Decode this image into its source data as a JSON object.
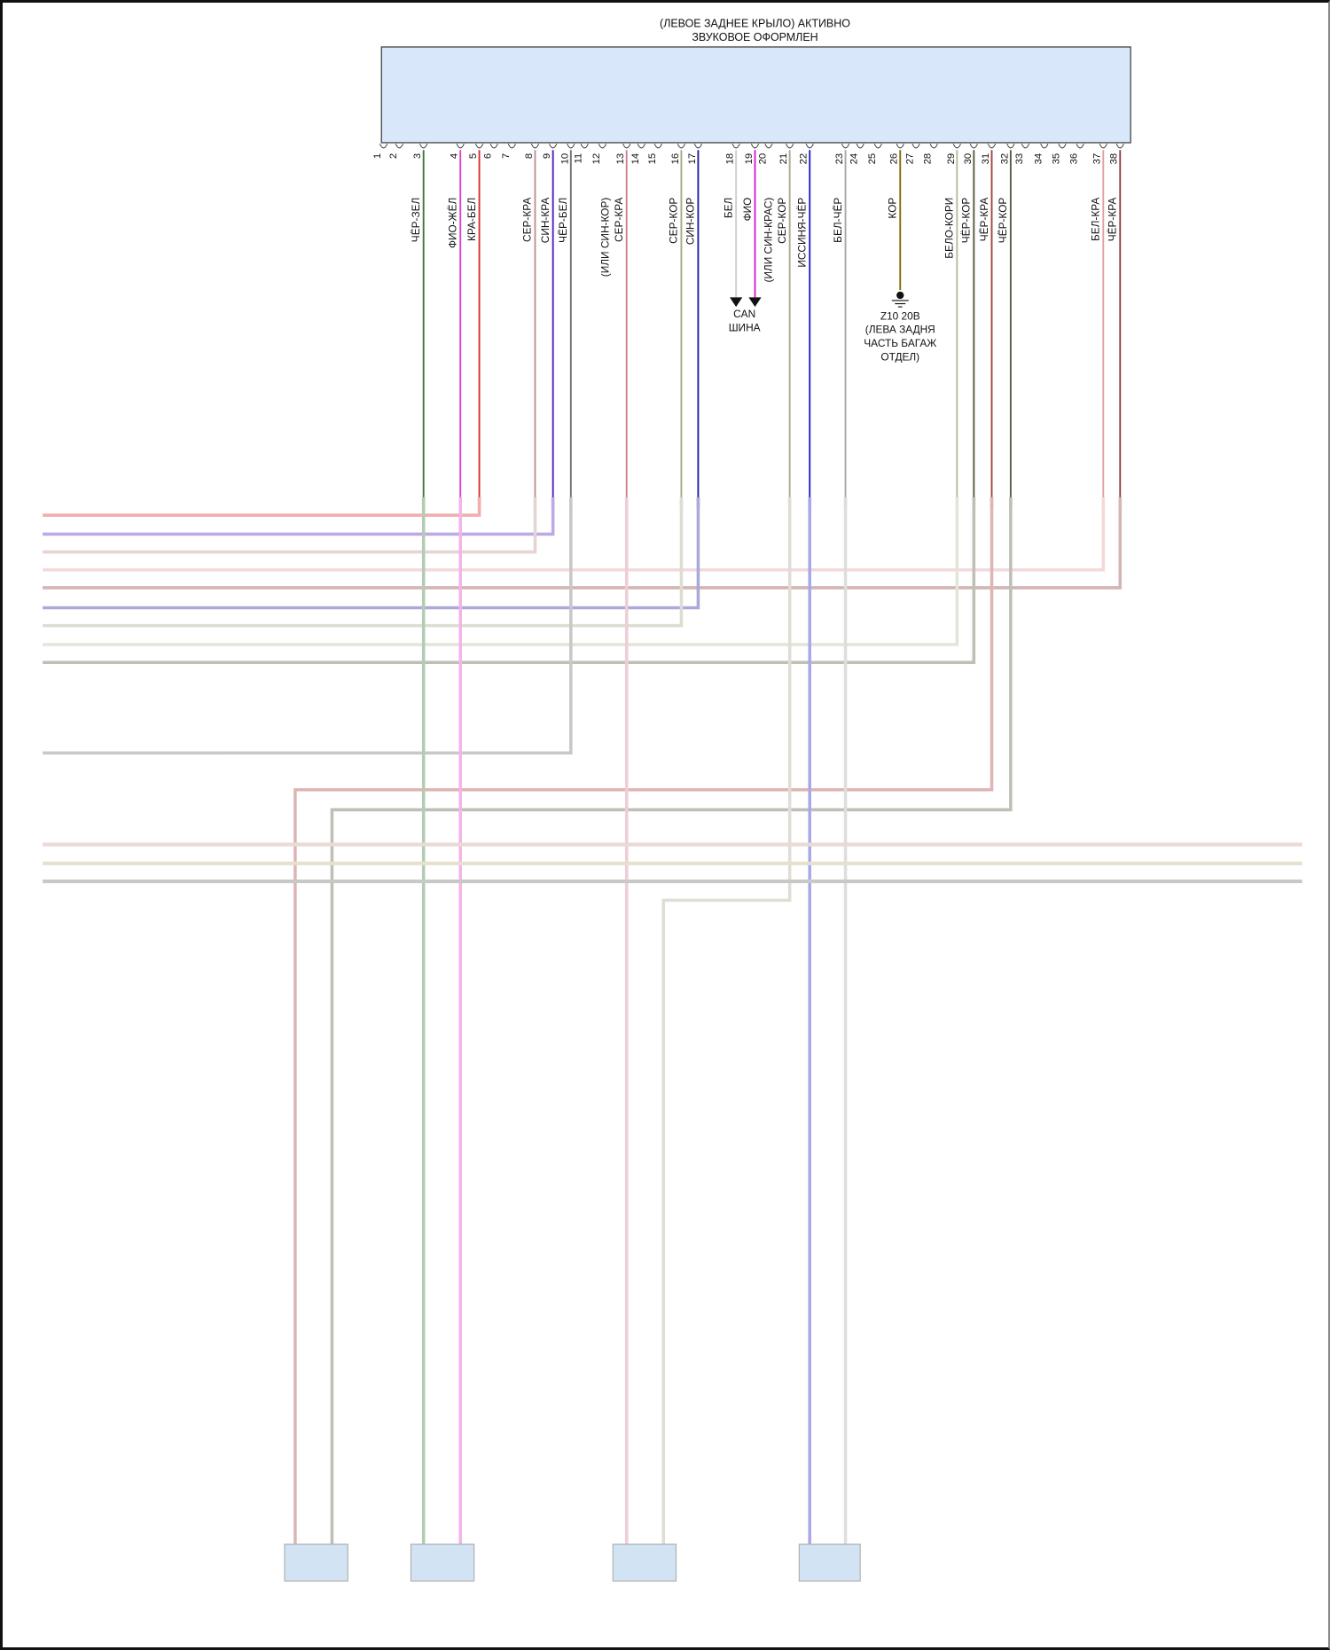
{
  "module": {
    "title_line1": "(ЛЕВОЕ ЗАДНЕЕ КРЫЛО) АКТИВНО",
    "title_line2": "ЗВУКОВОЕ ОФОРМЛЕН",
    "fill_color": "#d8e8fa"
  },
  "pins": [
    "1",
    "2",
    "3",
    "4",
    "5",
    "6",
    "7",
    "8",
    "9",
    "10",
    "11",
    "12",
    "13",
    "14",
    "15",
    "16",
    "17",
    "18",
    "19",
    "20",
    "21",
    "22",
    "23",
    "24",
    "25",
    "26",
    "27",
    "28",
    "29",
    "30",
    "31",
    "32",
    "33",
    "34",
    "35",
    "36",
    "37",
    "38"
  ],
  "wires": [
    {
      "pin": "3",
      "label": "ЧЁР-ЗЕЛ",
      "color": "#3c7a3c"
    },
    {
      "pin": "4",
      "label": "ФИО-ЖЁЛ",
      "color": "#e040c8"
    },
    {
      "pin": "5",
      "label": "КРА-БЕЛ",
      "color": "#d83030"
    },
    {
      "pin": "8",
      "label": "СЕР-КРА",
      "color": "#c09090"
    },
    {
      "pin": "9",
      "label": "СИН-КРА",
      "color": "#5020c0"
    },
    {
      "pin": "10",
      "label": "ЧЁР-БЕЛ",
      "color": "#707070"
    },
    {
      "pin": "13",
      "label": "СЕР-КРА",
      "alt": "(ИЛИ СИН-КОР)",
      "color": "#d08090"
    },
    {
      "pin": "16",
      "label": "СЕР-КОР",
      "color": "#a8a888"
    },
    {
      "pin": "17",
      "label": "СИН-КОР",
      "color": "#2020a0"
    },
    {
      "pin": "18",
      "label": "БЕЛ",
      "color": "#cfcfcf"
    },
    {
      "pin": "19",
      "label": "ФИО",
      "color": "#d020d0"
    },
    {
      "pin": "21",
      "label": "СЕР-КОР",
      "alt": "(ИЛИ СИН-КРАС)",
      "color": "#b0a890"
    },
    {
      "pin": "22",
      "label": "ИССИНЯ-ЧЁР",
      "color": "#2020c8"
    },
    {
      "pin": "23",
      "label": "БЕЛ-ЧЁР",
      "color": "#a8a8a8"
    },
    {
      "pin": "26",
      "label": "КОР",
      "color": "#8a6a10"
    },
    {
      "pin": "29",
      "label": "БЕЛО-КОРИ",
      "color": "#b4bc98"
    },
    {
      "pin": "30",
      "label": "ЧЁР-КОР",
      "color": "#5a5a40"
    },
    {
      "pin": "31",
      "label": "ЧЁР-КРА",
      "color": "#a84040"
    },
    {
      "pin": "32",
      "label": "ЧЁР-КОР",
      "color": "#5a5a48"
    },
    {
      "pin": "37",
      "label": "БЕЛ-КРА",
      "color": "#e0a0a0"
    },
    {
      "pin": "38",
      "label": "ЧЁР-КРА",
      "color": "#904040"
    }
  ],
  "can_bus": {
    "line1": "CAN",
    "line2": "ШИНА"
  },
  "ground": {
    "line1": "Z10 20B",
    "line2": "(ЛЕВА ЗАДНЯ",
    "line3": "ЧАСТЬ БАГАЖ",
    "line4": "ОТДЕЛ)"
  }
}
